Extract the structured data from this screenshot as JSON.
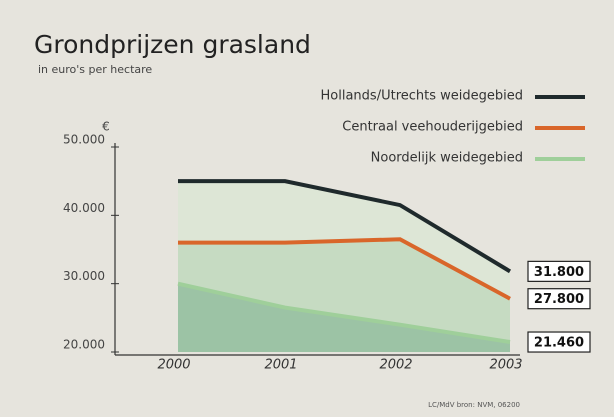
{
  "chart_data": {
    "type": "area",
    "title": "Grondprijzen grasland",
    "subtitle": "in euro's per hectare",
    "y_unit": "€",
    "source": "LC/MdV bron: NVM, 06200",
    "categories": [
      "2000",
      "2001",
      "2002",
      "2003"
    ],
    "series": [
      {
        "name": "Hollands/Utrechts weidegebied",
        "color": "#1f2a2c",
        "fill": "#dde6d6",
        "values": [
          45000,
          45000,
          41500,
          31800
        ],
        "value_labels": [
          null,
          null,
          null,
          "31.800"
        ]
      },
      {
        "name": "Centraal veehouderijgebied",
        "color": "#d9662a",
        "fill": "#c6dbc2",
        "values": [
          36000,
          36000,
          36500,
          27800
        ],
        "value_labels": [
          null,
          null,
          null,
          "27.800"
        ]
      },
      {
        "name": "Noordelijk weidegebied",
        "color": "#9fcf9a",
        "fill": "#9cc3a5",
        "values": [
          30000,
          26500,
          24000,
          21460
        ],
        "value_labels": [
          null,
          null,
          null,
          "21.460"
        ]
      }
    ],
    "ylim": [
      20000,
      50000
    ],
    "yticks": [
      {
        "value": 20000,
        "label": "20.000"
      },
      {
        "value": 30000,
        "label": "30.000"
      },
      {
        "value": 40000,
        "label": "40.000"
      },
      {
        "value": 50000,
        "label": "50.000"
      }
    ],
    "legend": "top-right"
  }
}
